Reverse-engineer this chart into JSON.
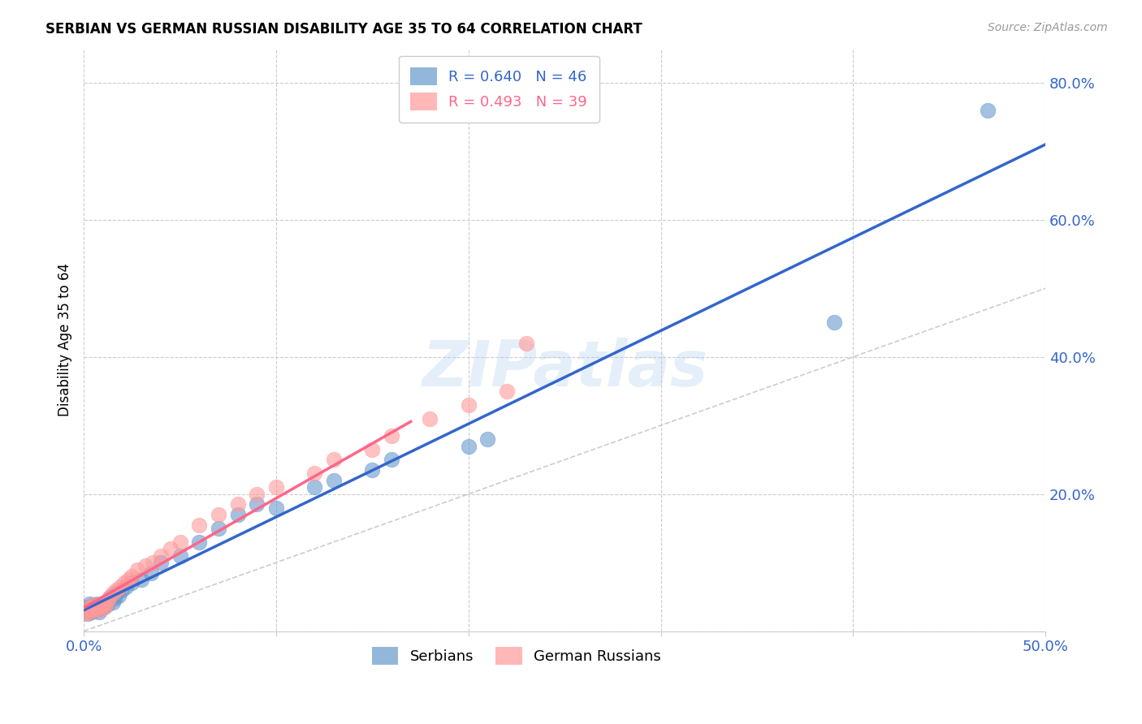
{
  "title": "SERBIAN VS GERMAN RUSSIAN DISABILITY AGE 35 TO 64 CORRELATION CHART",
  "source": "Source: ZipAtlas.com",
  "ylabel": "Disability Age 35 to 64",
  "xlim": [
    0.0,
    0.5
  ],
  "ylim": [
    0.0,
    0.85
  ],
  "serbians_color": "#6699CC",
  "german_russians_color": "#FF9999",
  "trendline_serbian_color": "#3366CC",
  "trendline_gr_color": "#FF6688",
  "diagonal_color": "#CCCCCC",
  "R_serbian": 0.64,
  "N_serbian": 46,
  "R_gr": 0.493,
  "N_gr": 39,
  "watermark": "ZIPatlas",
  "serbians_x": [
    0.001,
    0.002,
    0.002,
    0.003,
    0.003,
    0.004,
    0.004,
    0.005,
    0.005,
    0.006,
    0.006,
    0.007,
    0.007,
    0.008,
    0.008,
    0.009,
    0.01,
    0.01,
    0.011,
    0.012,
    0.013,
    0.014,
    0.015,
    0.016,
    0.017,
    0.018,
    0.02,
    0.022,
    0.025,
    0.03,
    0.035,
    0.04,
    0.05,
    0.06,
    0.07,
    0.08,
    0.09,
    0.1,
    0.12,
    0.13,
    0.15,
    0.16,
    0.2,
    0.21,
    0.39,
    0.47
  ],
  "serbians_y": [
    0.03,
    0.025,
    0.035,
    0.03,
    0.04,
    0.028,
    0.035,
    0.032,
    0.038,
    0.03,
    0.035,
    0.032,
    0.04,
    0.035,
    0.028,
    0.038,
    0.04,
    0.035,
    0.042,
    0.038,
    0.045,
    0.05,
    0.042,
    0.048,
    0.055,
    0.052,
    0.06,
    0.065,
    0.07,
    0.075,
    0.085,
    0.1,
    0.11,
    0.13,
    0.15,
    0.17,
    0.185,
    0.18,
    0.21,
    0.22,
    0.235,
    0.25,
    0.27,
    0.28,
    0.45,
    0.76
  ],
  "german_russians_x": [
    0.001,
    0.002,
    0.003,
    0.003,
    0.004,
    0.005,
    0.006,
    0.007,
    0.008,
    0.009,
    0.01,
    0.011,
    0.012,
    0.013,
    0.015,
    0.017,
    0.019,
    0.021,
    0.023,
    0.025,
    0.028,
    0.032,
    0.036,
    0.04,
    0.045,
    0.05,
    0.06,
    0.07,
    0.08,
    0.09,
    0.1,
    0.12,
    0.13,
    0.15,
    0.16,
    0.18,
    0.2,
    0.22,
    0.23
  ],
  "german_russians_y": [
    0.025,
    0.03,
    0.028,
    0.035,
    0.032,
    0.038,
    0.03,
    0.035,
    0.032,
    0.04,
    0.038,
    0.035,
    0.042,
    0.048,
    0.055,
    0.06,
    0.065,
    0.07,
    0.075,
    0.08,
    0.09,
    0.095,
    0.1,
    0.11,
    0.12,
    0.13,
    0.155,
    0.17,
    0.185,
    0.2,
    0.21,
    0.23,
    0.25,
    0.265,
    0.285,
    0.31,
    0.33,
    0.35,
    0.42
  ]
}
